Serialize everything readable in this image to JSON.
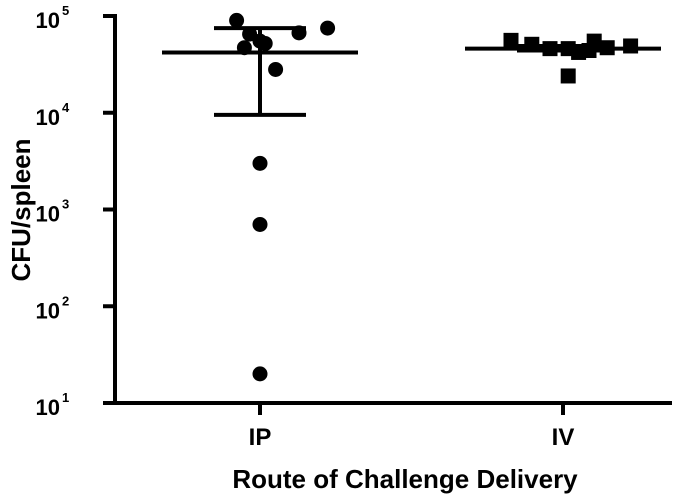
{
  "chart_data": {
    "type": "scatter",
    "title": "",
    "xlabel": "Route of Challenge Delivery",
    "ylabel": "CFU/spleen",
    "yscale": "log",
    "ylim": [
      10,
      100000
    ],
    "grid": false,
    "legend": "none",
    "yticks": [
      {
        "value": 10,
        "base": "10",
        "exp": "1"
      },
      {
        "value": 100,
        "base": "10",
        "exp": "2"
      },
      {
        "value": 1000,
        "base": "10",
        "exp": "3"
      },
      {
        "value": 10000,
        "base": "10",
        "exp": "4"
      },
      {
        "value": 100000,
        "base": "10",
        "exp": "5"
      }
    ],
    "categories": [
      "IP",
      "IV"
    ],
    "series": [
      {
        "category": "IP",
        "marker": "circle",
        "points": [
          {
            "x": -0.09,
            "y": 90000
          },
          {
            "x": 0.26,
            "y": 75000
          },
          {
            "x": 0.15,
            "y": 67000
          },
          {
            "x": -0.04,
            "y": 65000
          },
          {
            "x": 0.02,
            "y": 52000
          },
          {
            "x": -0.06,
            "y": 47000
          },
          {
            "x": 0.0,
            "y": 55000
          },
          {
            "x": 0.06,
            "y": 28000
          },
          {
            "x": 0.0,
            "y": 3000
          },
          {
            "x": 0.0,
            "y": 700
          },
          {
            "x": 0.0,
            "y": 20
          }
        ],
        "mean": 42000,
        "error_upper": 75000,
        "error_lower": 9500
      },
      {
        "category": "IV",
        "marker": "square",
        "points": [
          {
            "x": -0.2,
            "y": 56000
          },
          {
            "x": -0.12,
            "y": 51000
          },
          {
            "x": -0.05,
            "y": 46000
          },
          {
            "x": 0.02,
            "y": 46000
          },
          {
            "x": 0.06,
            "y": 42000
          },
          {
            "x": 0.1,
            "y": 44000
          },
          {
            "x": 0.12,
            "y": 55000
          },
          {
            "x": 0.17,
            "y": 47000
          },
          {
            "x": 0.26,
            "y": 49000
          },
          {
            "x": 0.02,
            "y": 24000
          }
        ],
        "mean": 46000,
        "error_upper": 49000,
        "error_lower": 44000
      }
    ]
  }
}
